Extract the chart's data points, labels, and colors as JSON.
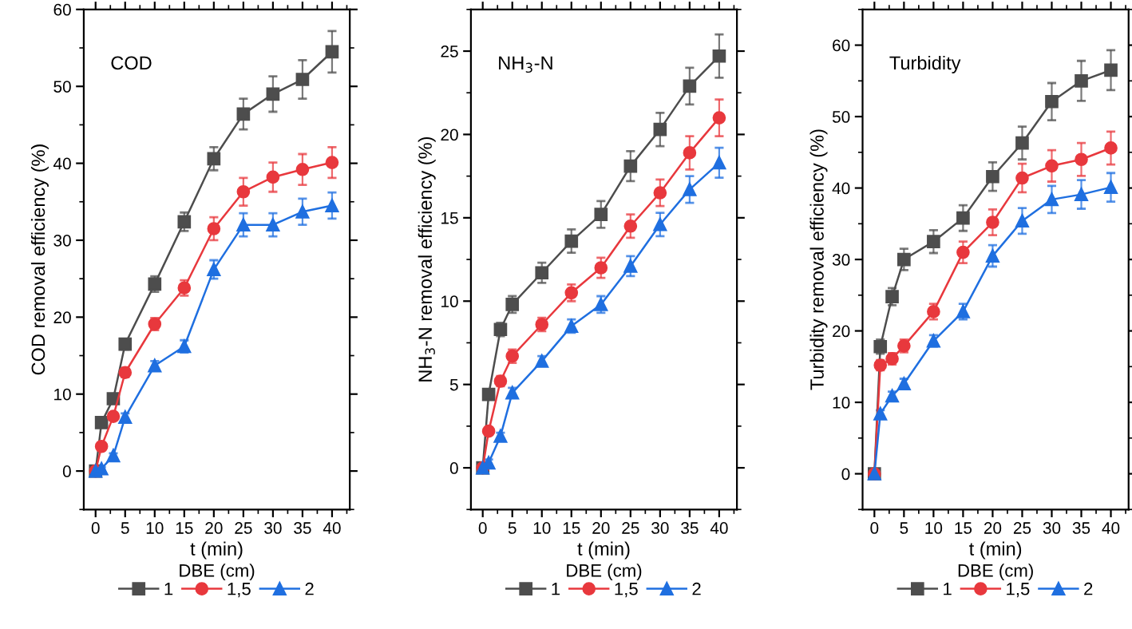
{
  "chart_data": [
    {
      "type": "line",
      "xlabel": "t (min)",
      "ylabel": "COD removal efficiency (%)",
      "annotations": [
        "COD"
      ],
      "legend": "bottom",
      "legend_title": "DBE (cm)",
      "x": [
        0,
        1,
        3,
        5,
        10,
        15,
        20,
        25,
        30,
        35,
        40
      ],
      "xlim": [
        -2,
        43
      ],
      "xticks": [
        0,
        5,
        10,
        15,
        20,
        25,
        30,
        35,
        40
      ],
      "ylim": [
        -5,
        60
      ],
      "yticks": [
        0,
        10,
        20,
        30,
        40,
        50,
        60
      ],
      "line_style": "solid",
      "series": [
        {
          "name": "1",
          "color": "#4d4d4d",
          "marker": "square",
          "values": [
            0,
            6.3,
            9.4,
            16.5,
            24.3,
            32.4,
            40.6,
            46.4,
            49,
            50.9,
            54.5
          ],
          "errors": [
            0,
            0.5,
            0.5,
            0.7,
            1,
            1.2,
            1.5,
            2,
            2.3,
            2.5,
            2.7
          ]
        },
        {
          "name": "1,5",
          "color": "#e8383d",
          "marker": "circle",
          "values": [
            0,
            3.2,
            7.1,
            12.8,
            19.1,
            23.8,
            31.5,
            36.3,
            38.2,
            39.2,
            40.1
          ],
          "errors": [
            0,
            0.3,
            0.4,
            0.6,
            0.8,
            1,
            1.5,
            1.8,
            1.9,
            2,
            2
          ]
        },
        {
          "name": "2",
          "color": "#1f6fe0",
          "marker": "triangle",
          "values": [
            0,
            0.3,
            2,
            7,
            13.7,
            16.2,
            26.2,
            32,
            32,
            33.7,
            34.5
          ],
          "errors": [
            0,
            0.2,
            0.3,
            0.5,
            0.6,
            0.8,
            1.2,
            1.5,
            1.5,
            1.7,
            1.7
          ]
        }
      ]
    },
    {
      "type": "line",
      "xlabel": "t (min)",
      "ylabel": "NH$_{3}$-N removal efficiency (%)",
      "annotations": [
        "NH$_{3}$-N"
      ],
      "legend": "bottom",
      "legend_title": "DBE (cm)",
      "x": [
        0,
        1,
        3,
        5,
        10,
        15,
        20,
        25,
        30,
        35,
        40
      ],
      "xlim": [
        -2,
        43
      ],
      "xticks": [
        0,
        5,
        10,
        15,
        20,
        25,
        30,
        35,
        40
      ],
      "ylim": [
        -2.5,
        27.5
      ],
      "yticks": [
        0,
        5,
        10,
        15,
        20,
        25
      ],
      "line_style": "solid",
      "series": [
        {
          "name": "1",
          "color": "#4d4d4d",
          "marker": "square",
          "values": [
            0,
            4.4,
            8.3,
            9.8,
            11.7,
            13.6,
            15.2,
            18.1,
            20.3,
            22.9,
            24.7
          ],
          "errors": [
            0,
            0.3,
            0.4,
            0.5,
            0.6,
            0.7,
            0.8,
            0.9,
            1,
            1.1,
            1.3
          ]
        },
        {
          "name": "1,5",
          "color": "#e8383d",
          "marker": "circle",
          "values": [
            0,
            2.2,
            5.2,
            6.7,
            8.6,
            10.5,
            12,
            14.5,
            16.5,
            18.9,
            21
          ],
          "errors": [
            0,
            0.2,
            0.3,
            0.4,
            0.4,
            0.5,
            0.6,
            0.7,
            0.8,
            1,
            1.1
          ]
        },
        {
          "name": "2",
          "color": "#1f6fe0",
          "marker": "triangle",
          "values": [
            0,
            0.3,
            1.9,
            4.5,
            6.4,
            8.5,
            9.8,
            12.1,
            14.6,
            16.7,
            18.3
          ],
          "errors": [
            0,
            0.2,
            0.2,
            0.3,
            0.3,
            0.4,
            0.5,
            0.6,
            0.7,
            0.8,
            0.9
          ]
        }
      ]
    },
    {
      "type": "line",
      "xlabel": "t (min)",
      "ylabel": "Turbidity removal efficiency (%)",
      "annotations": [
        "Turbidity"
      ],
      "legend": "bottom",
      "legend_title": "DBE (cm)",
      "x": [
        0,
        1,
        3,
        5,
        10,
        15,
        20,
        25,
        30,
        35,
        40
      ],
      "xlim": [
        -2,
        43
      ],
      "xticks": [
        0,
        5,
        10,
        15,
        20,
        25,
        30,
        35,
        40
      ],
      "ylim": [
        -5,
        65
      ],
      "yticks": [
        0,
        10,
        20,
        30,
        40,
        50,
        60
      ],
      "line_style": "solid",
      "series": [
        {
          "name": "1",
          "color": "#4d4d4d",
          "marker": "square",
          "values": [
            0,
            17.8,
            24.8,
            30,
            32.5,
            35.8,
            41.6,
            46.3,
            52.1,
            55,
            56.5
          ],
          "errors": [
            0,
            1,
            1.2,
            1.5,
            1.6,
            1.8,
            2,
            2.3,
            2.6,
            2.8,
            2.8
          ]
        },
        {
          "name": "1,5",
          "color": "#e8383d",
          "marker": "circle",
          "values": [
            0,
            15.2,
            16.1,
            17.9,
            22.7,
            31,
            35.2,
            41.4,
            43.1,
            44,
            45.6
          ],
          "errors": [
            0,
            0.7,
            0.8,
            0.9,
            1.1,
            1.5,
            1.8,
            2,
            2.2,
            2.3,
            2.3
          ]
        },
        {
          "name": "2",
          "color": "#1f6fe0",
          "marker": "triangle",
          "values": [
            0,
            8.4,
            10.9,
            12.6,
            18.6,
            22.7,
            30.5,
            35.4,
            38.4,
            39.1,
            40.1
          ],
          "errors": [
            0,
            0.5,
            0.6,
            0.7,
            0.8,
            1.1,
            1.5,
            1.8,
            1.9,
            2,
            2
          ]
        }
      ]
    }
  ]
}
